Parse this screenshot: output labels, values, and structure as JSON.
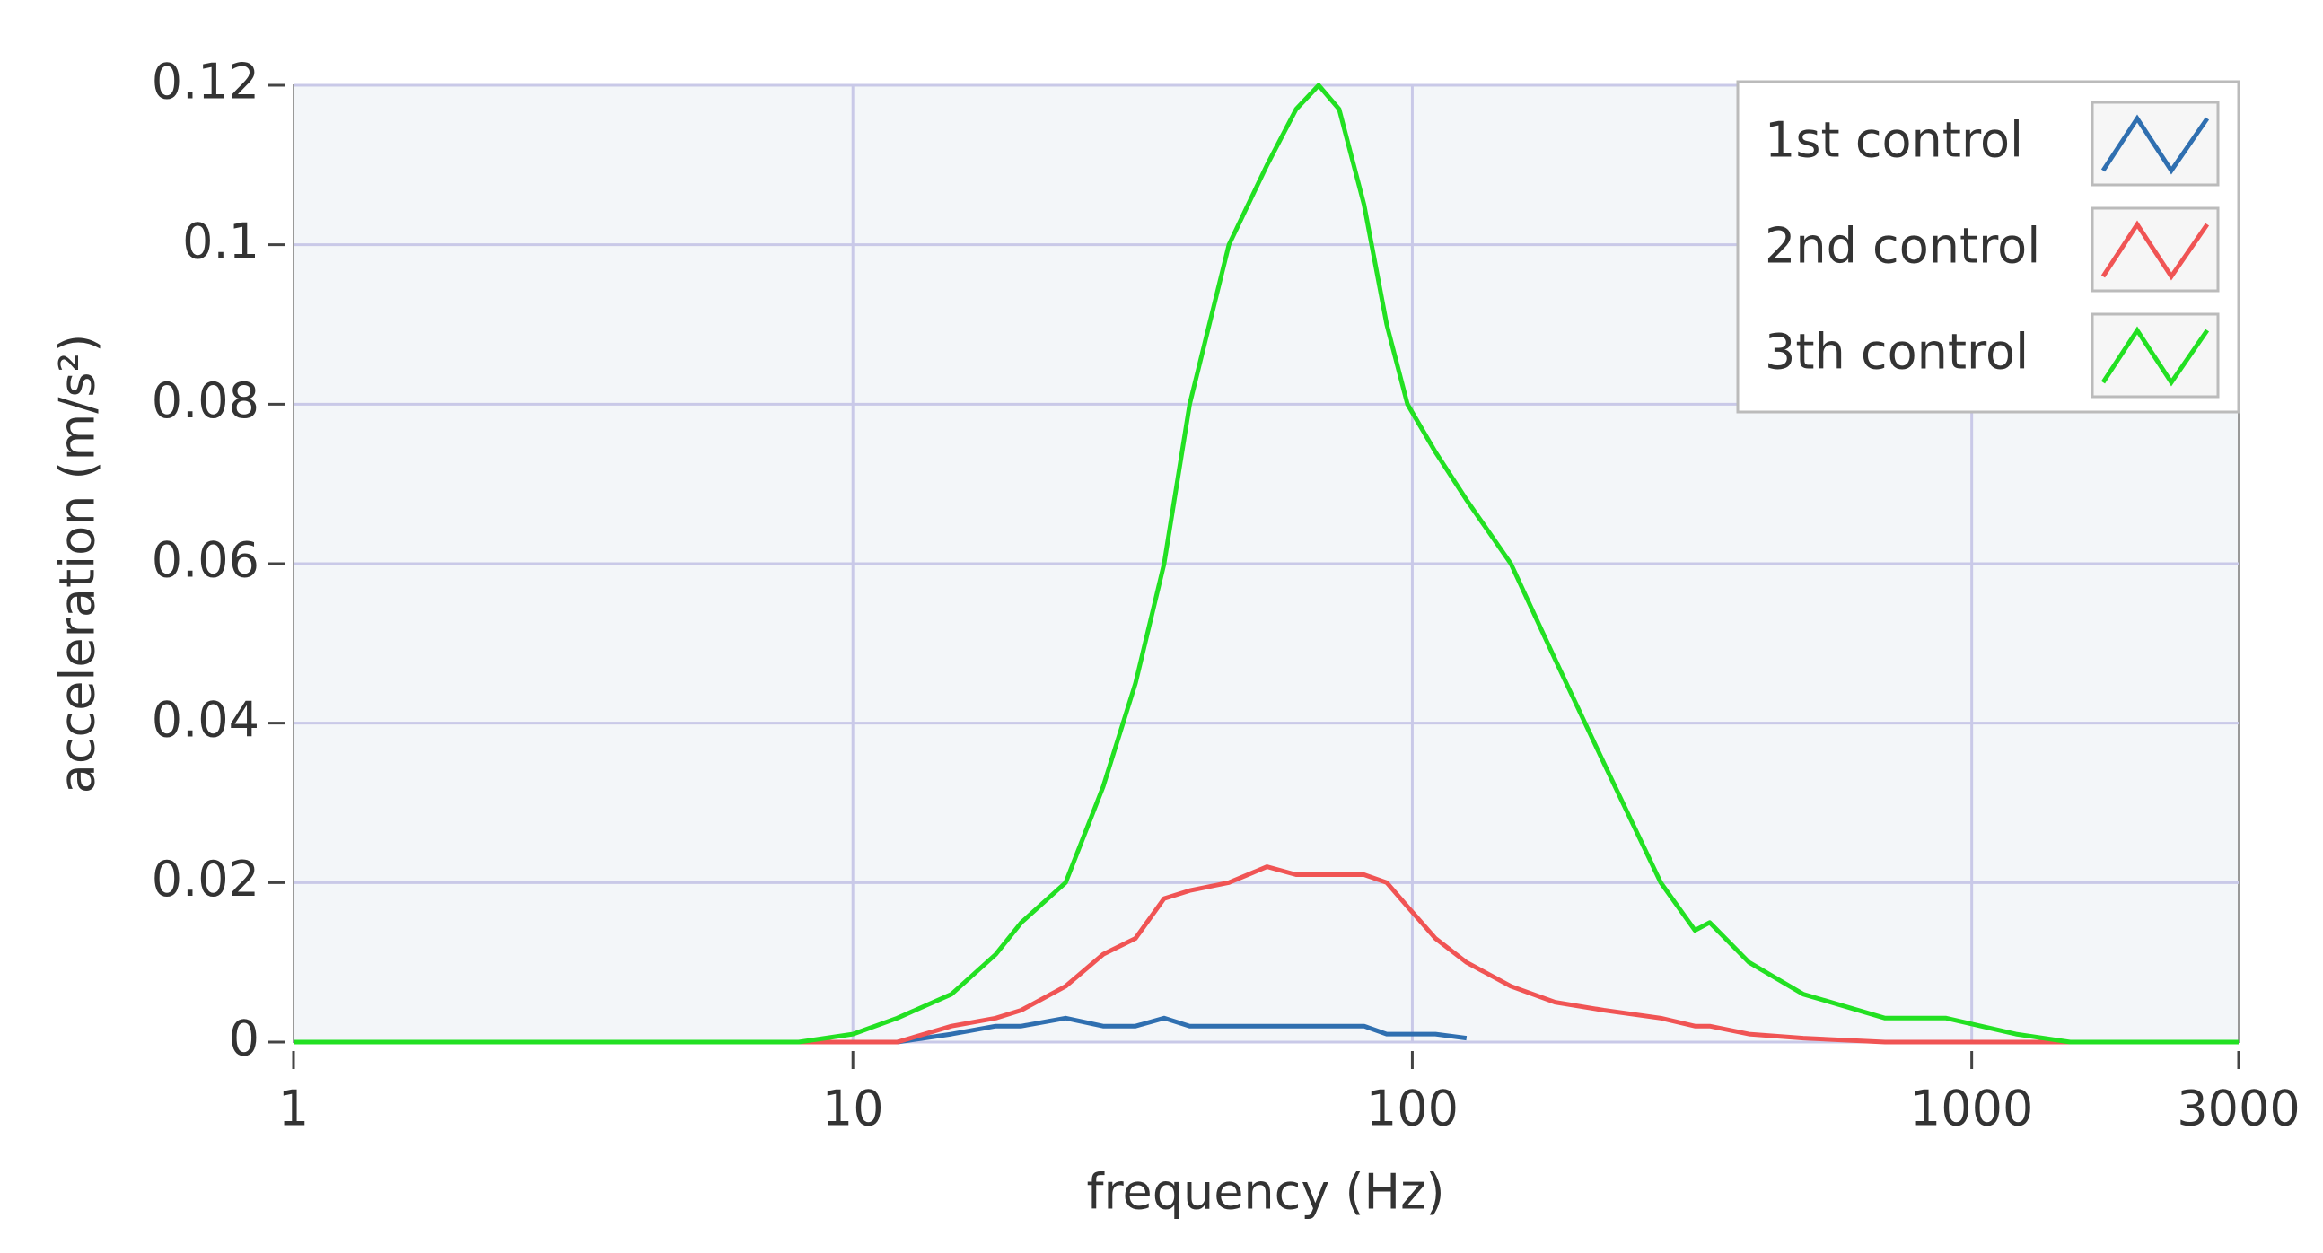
{
  "chart_data": {
    "type": "line",
    "x_label": "frequency (Hz)",
    "y_label": "acceleration (m/s²)",
    "x": [
      1,
      8,
      10,
      12,
      15,
      18,
      20,
      24,
      28,
      32,
      36,
      40,
      47,
      55,
      62,
      68,
      74,
      82,
      90,
      98,
      110,
      125,
      150,
      180,
      220,
      278,
      320,
      340,
      400,
      500,
      700,
      900,
      1200,
      1500,
      3000
    ],
    "series": [
      {
        "name": "1st control",
        "color": "#2f6fb0",
        "values": [
          0,
          0,
          0,
          0,
          0.001,
          0.002,
          0.002,
          0.003,
          0.002,
          0.002,
          0.003,
          0.002,
          0.002,
          0.002,
          0.002,
          0.002,
          0.002,
          0.002,
          0.001,
          0.001,
          0.001,
          0.0005,
          null,
          null,
          null,
          null,
          null,
          null,
          null,
          null,
          null,
          null,
          null,
          null,
          null
        ]
      },
      {
        "name": "2nd control",
        "color": "#f05454",
        "values": [
          0,
          0,
          0,
          0,
          0.002,
          0.003,
          0.004,
          0.007,
          0.011,
          0.013,
          0.018,
          0.019,
          0.02,
          0.022,
          0.021,
          0.021,
          0.021,
          0.021,
          0.02,
          0.017,
          0.013,
          0.01,
          0.007,
          0.005,
          0.004,
          0.003,
          0.002,
          0.002,
          0.001,
          0.0005,
          0,
          0,
          0,
          0,
          0
        ]
      },
      {
        "name": "3th control",
        "color": "#22e022",
        "values": [
          0,
          0,
          0.001,
          0.003,
          0.006,
          0.011,
          0.015,
          0.02,
          0.032,
          0.045,
          0.06,
          0.08,
          0.1,
          0.11,
          0.117,
          0.12,
          0.117,
          0.105,
          0.09,
          0.08,
          0.074,
          0.068,
          0.06,
          0.048,
          0.035,
          0.02,
          0.014,
          0.015,
          0.01,
          0.006,
          0.003,
          0.003,
          0.001,
          0,
          0
        ]
      }
    ],
    "xscale": "log",
    "xlim": [
      1,
      3000
    ],
    "xticks": [
      1,
      10,
      100,
      1000,
      3000
    ],
    "ylim": [
      0,
      0.12
    ],
    "yticks": [
      0,
      0.02,
      0.04,
      0.06,
      0.08,
      0.1,
      0.12
    ],
    "grid": true,
    "legend": "top-right"
  }
}
